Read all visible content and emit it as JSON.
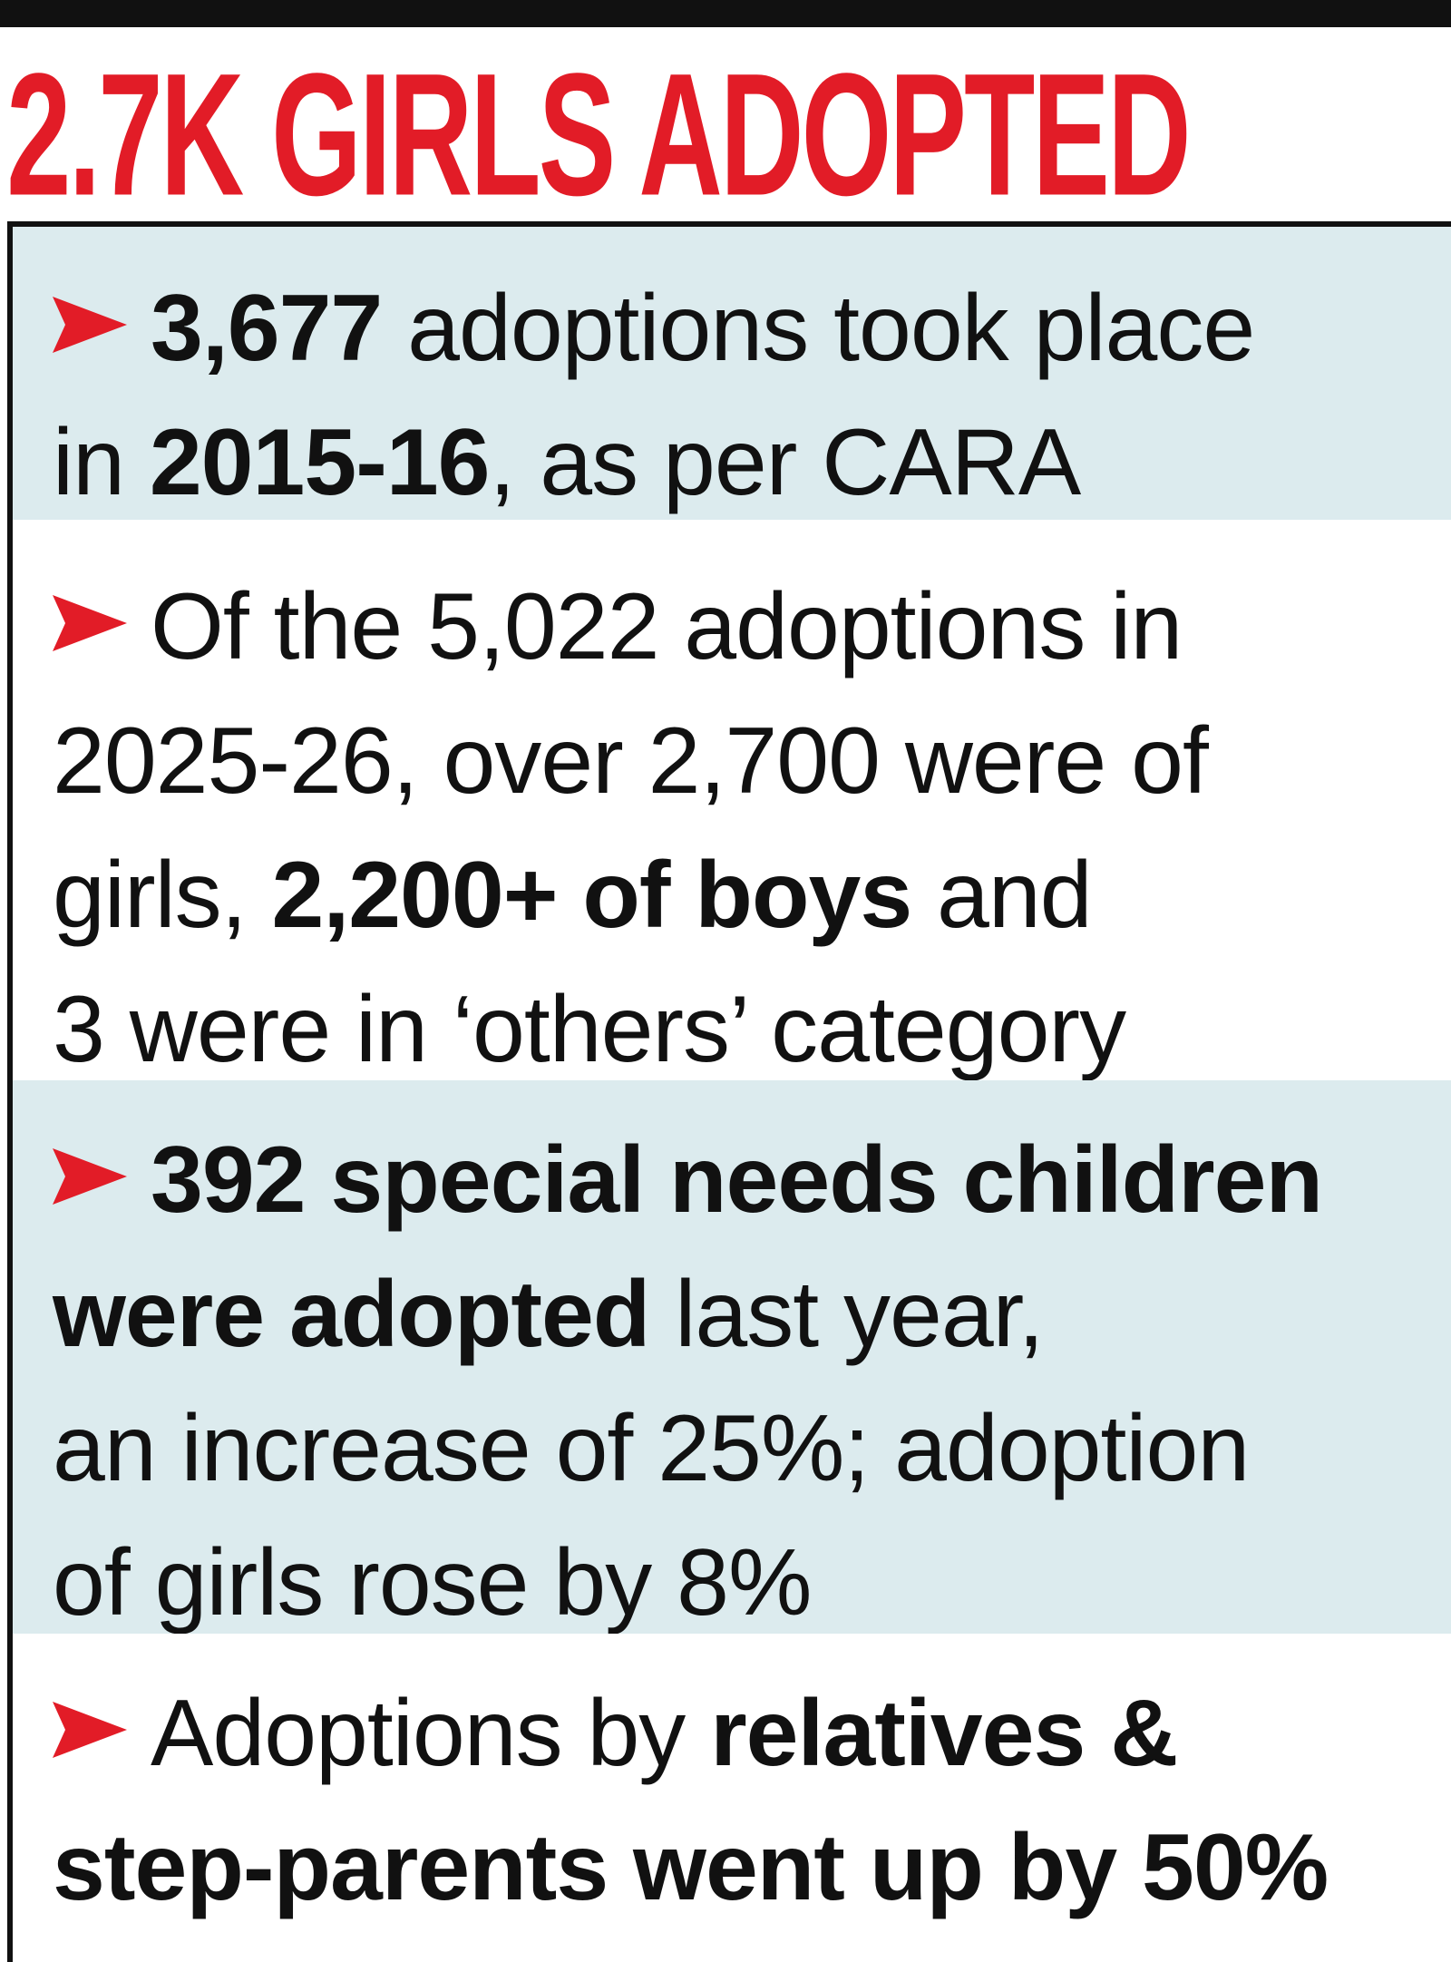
{
  "headline": "2.7K GIRLS ADOPTED",
  "colors": {
    "headline": "#e21c27",
    "arrow": "#e21c27",
    "tinted_background": "#dcebee",
    "text": "#111111",
    "rule": "#111111"
  },
  "bullet_icon": "red-arrowhead-icon",
  "facts": [
    {
      "lines": [
        [
          {
            "text": "3,677",
            "bold": true
          },
          {
            "text": " adoptions took place",
            "bold": false
          }
        ],
        [
          {
            "text": "in ",
            "bold": false
          },
          {
            "text": "2015-16",
            "bold": true
          },
          {
            "text": ", as per CARA",
            "bold": false
          }
        ]
      ]
    },
    {
      "lines": [
        [
          {
            "text": "Of the 5,022 adoptions in",
            "bold": false
          }
        ],
        [
          {
            "text": "2025-26, over 2,700 were of",
            "bold": false
          }
        ],
        [
          {
            "text": "girls, ",
            "bold": false
          },
          {
            "text": "2,200+ of boys",
            "bold": true
          },
          {
            "text": " and",
            "bold": false
          }
        ],
        [
          {
            "text": "3 were in ‘others’ category",
            "bold": false
          }
        ]
      ]
    },
    {
      "lines": [
        [
          {
            "text": "392 special needs children",
            "bold": true
          }
        ],
        [
          {
            "text": "were adopted",
            "bold": true
          },
          {
            "text": " last year,",
            "bold": false
          }
        ],
        [
          {
            "text": "an increase of 25%; adoption",
            "bold": false
          }
        ],
        [
          {
            "text": "of girls rose by 8%",
            "bold": false
          }
        ]
      ]
    },
    {
      "lines": [
        [
          {
            "text": "Adoptions by ",
            "bold": false
          },
          {
            "text": "relatives &",
            "bold": true
          }
        ],
        [
          {
            "text": "step-parents went up by 50%",
            "bold": true
          }
        ]
      ]
    }
  ]
}
